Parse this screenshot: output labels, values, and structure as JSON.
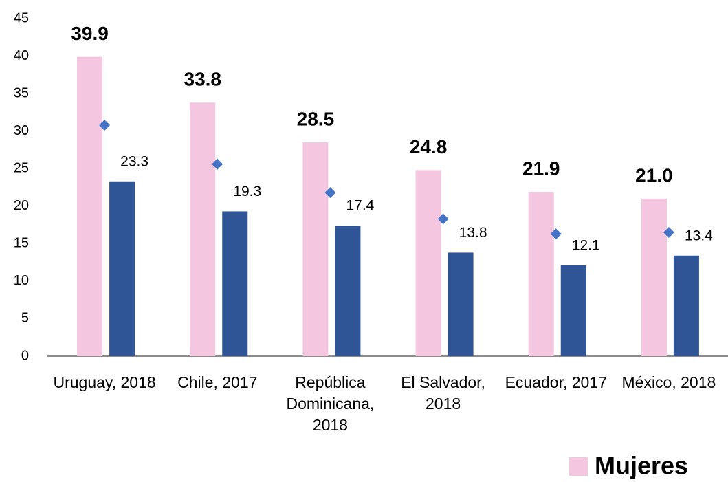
{
  "chart_data": {
    "type": "bar",
    "categories": [
      "Uruguay, 2018",
      "Chile, 2017",
      "República Dominicana, 2018",
      "El Salvador, 2018",
      "Ecuador, 2017",
      "México, 2018"
    ],
    "series": [
      {
        "name": "Mujeres",
        "color": "#f4c6df",
        "values": [
          39.9,
          33.8,
          28.5,
          24.8,
          21.9,
          21.0
        ],
        "value_labels": [
          "39.9",
          "33.8",
          "28.5",
          "24.8",
          "21.9",
          "21.0"
        ]
      },
      {
        "color": "#2f5597",
        "values": [
          23.3,
          19.3,
          17.4,
          13.8,
          12.1,
          13.4
        ]
      },
      {
        "color": "#4472c4",
        "marker": "diamond",
        "values": [
          30.8,
          25.6,
          21.8,
          18.3,
          16.3,
          16.5
        ]
      }
    ],
    "ylim": [
      0,
      45
    ],
    "yticks": [
      0,
      5,
      10,
      15,
      20,
      25,
      30,
      35,
      40,
      45
    ],
    "grid": false,
    "legend": "bottom-right"
  }
}
